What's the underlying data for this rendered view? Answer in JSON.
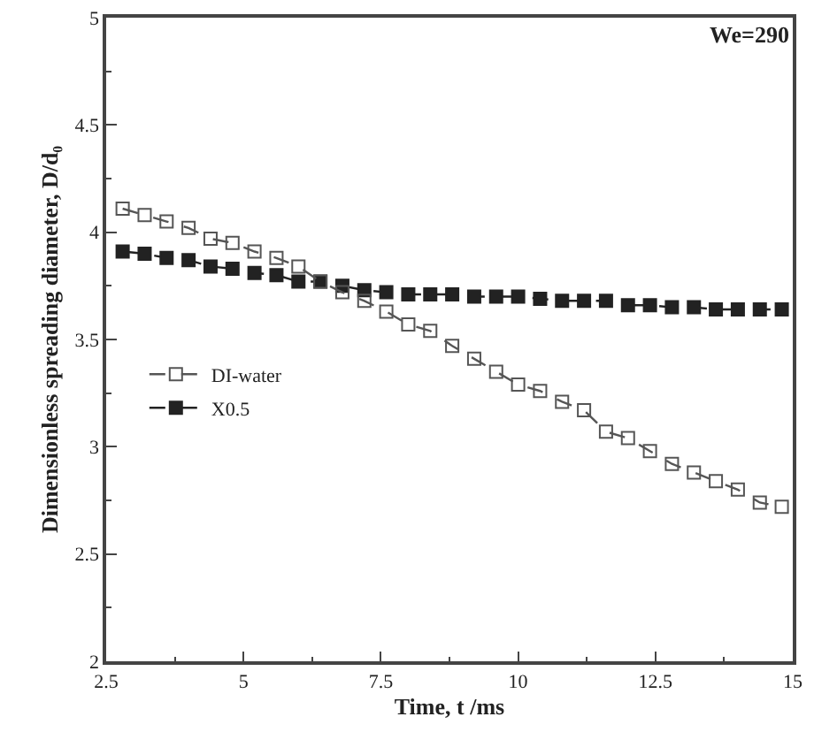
{
  "chart_data": {
    "type": "line",
    "xlabel": "Time, t /ms",
    "ylabel": "Dimensionless spreading diameter, D/d₀",
    "annotations": [
      "We=290"
    ],
    "x": [
      2.8,
      3.2,
      3.6,
      4.0,
      4.4,
      4.8,
      5.2,
      5.6,
      6.0,
      6.4,
      6.8,
      7.2,
      7.6,
      8.0,
      8.4,
      8.8,
      9.2,
      9.6,
      10.0,
      10.4,
      10.8,
      11.2,
      11.6,
      12.0,
      12.4,
      12.8,
      13.2,
      13.6,
      14.0,
      14.4,
      14.8
    ],
    "series": [
      {
        "name": "DI-water",
        "color": "#555555",
        "marker": "square-open",
        "values": [
          4.11,
          4.08,
          4.05,
          4.02,
          3.97,
          3.95,
          3.91,
          3.88,
          3.84,
          3.77,
          3.72,
          3.68,
          3.63,
          3.57,
          3.54,
          3.47,
          3.41,
          3.35,
          3.29,
          3.26,
          3.21,
          3.17,
          3.07,
          3.04,
          2.98,
          2.92,
          2.88,
          2.84,
          2.8,
          2.74,
          2.72
        ]
      },
      {
        "name": "X0.5",
        "color": "#222222",
        "marker": "square",
        "values": [
          3.91,
          3.9,
          3.88,
          3.87,
          3.84,
          3.83,
          3.81,
          3.8,
          3.77,
          3.77,
          3.75,
          3.73,
          3.72,
          3.71,
          3.71,
          3.71,
          3.7,
          3.7,
          3.7,
          3.69,
          3.68,
          3.68,
          3.68,
          3.66,
          3.66,
          3.65,
          3.65,
          3.64,
          3.64,
          3.64,
          3.64
        ]
      }
    ],
    "xlim": [
      2.5,
      15
    ],
    "xticks": [
      2.5,
      5,
      7.5,
      10,
      12.5,
      15
    ],
    "ylim": [
      2,
      5
    ],
    "yticks": [
      2,
      2.5,
      3,
      3.5,
      4,
      4.5,
      5
    ],
    "grid": false,
    "legend": "left",
    "line_style": "dashed"
  }
}
